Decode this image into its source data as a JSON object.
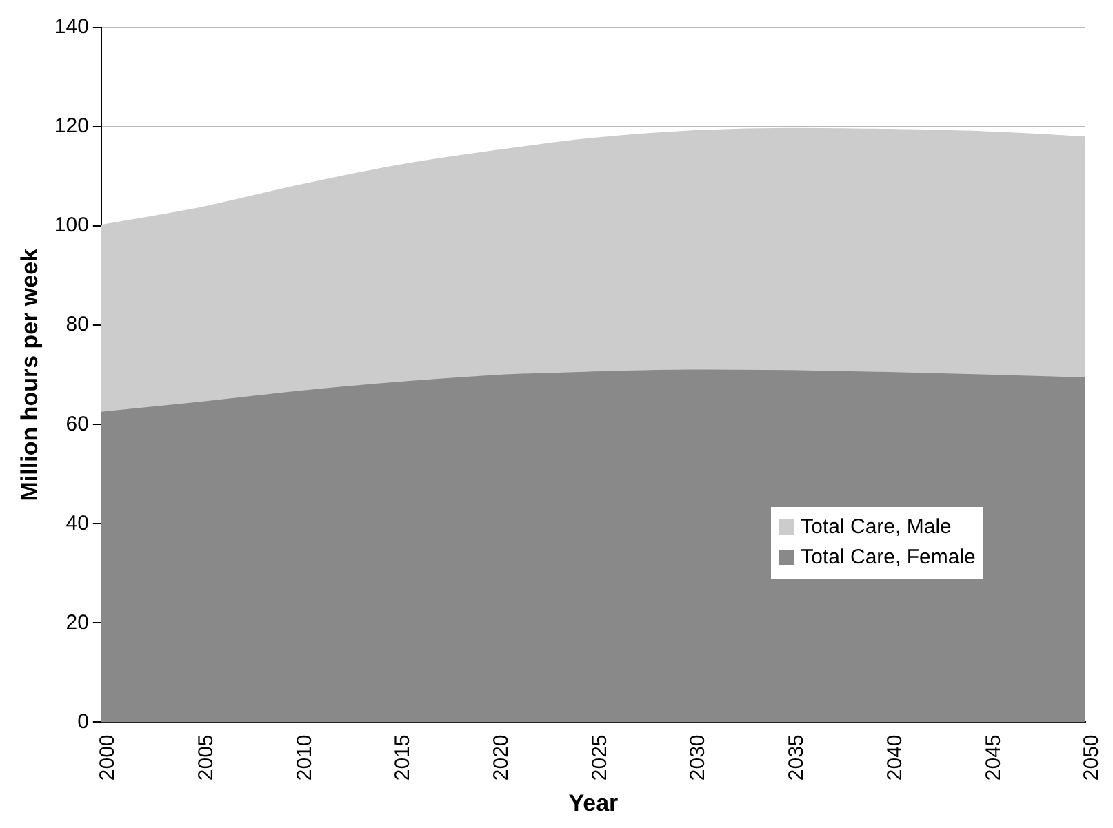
{
  "chart_data": {
    "type": "area",
    "xlabel": "Year",
    "ylabel": "Million hours per week",
    "x": [
      2000,
      2005,
      2010,
      2015,
      2020,
      2025,
      2030,
      2035,
      2040,
      2045,
      2050
    ],
    "stacked": true,
    "grid": "y",
    "legend": "right",
    "xlim": [
      2000,
      2050
    ],
    "xticks": [
      2000,
      2005,
      2010,
      2015,
      2020,
      2025,
      2030,
      2035,
      2040,
      2045,
      2050
    ],
    "ylim": [
      0,
      140
    ],
    "yticks": [
      0,
      20,
      40,
      60,
      80,
      100,
      120,
      140
    ],
    "series": [
      {
        "name": "Total Care, Female",
        "color": "#898989",
        "values": [
          62.3,
          64.3,
          66.5,
          68.3,
          69.7,
          70.4,
          70.8,
          70.7,
          70.3,
          69.8,
          69.2
        ]
      },
      {
        "name": "Total Care, Male",
        "color": "#cccccc",
        "values": [
          37.7,
          39.2,
          41.5,
          43.7,
          45.3,
          47.1,
          48.2,
          48.8,
          49.0,
          49.0,
          48.6
        ]
      }
    ]
  }
}
